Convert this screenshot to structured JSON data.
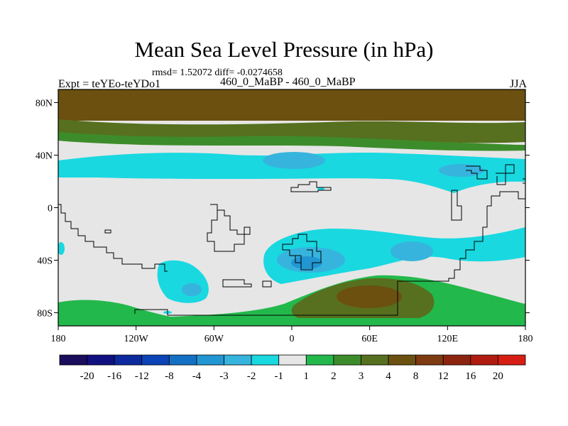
{
  "title": "Mean Sea Level Pressure (in hPa)",
  "stats": "rmsd= 1.52072 diff= -0.0274658",
  "experiment": "Expt = teYEo-teYDo1",
  "experiment_name": "460_0_MaBP - 460_0_MaBP",
  "season": "JJA",
  "chart_data": {
    "type": "heatmap",
    "title": "Mean Sea Level Pressure (in hPa)",
    "subtitle": "rmsd= 1.52072 diff= -0.0274658",
    "x_ticks": [
      "180",
      "120W",
      "60W",
      "0",
      "60E",
      "120E",
      "180"
    ],
    "y_ticks": [
      "80N",
      "40N",
      "0",
      "40S",
      "80S"
    ],
    "x_range": [
      -180,
      180
    ],
    "y_range": [
      -90,
      90
    ],
    "colorbar_labels": [
      "-20",
      "-16",
      "-12",
      "-8",
      "-4",
      "-3",
      "-2",
      "-1",
      "1",
      "2",
      "3",
      "4",
      "8",
      "12",
      "16",
      "20"
    ],
    "colorbar_colors": [
      "#1a0d5c",
      "#101080",
      "#0c2a9e",
      "#0a44b6",
      "#1470c4",
      "#2196d2",
      "#36b4de",
      "#19d8e0",
      "#e6e6e6",
      "#23b84b",
      "#3d8c2b",
      "#56701f",
      "#6b5010",
      "#7e3a10",
      "#8c2410",
      "#b01c10",
      "#d61e12"
    ]
  }
}
